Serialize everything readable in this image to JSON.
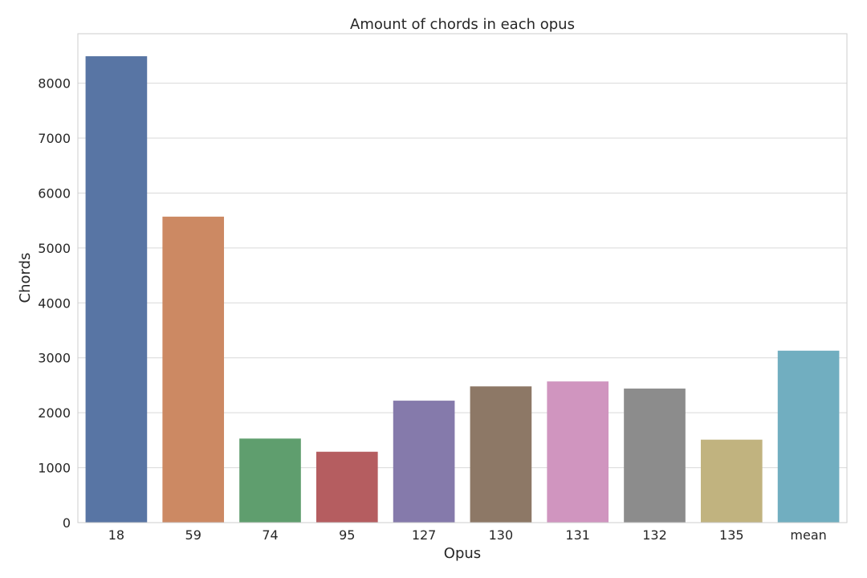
{
  "chart_data": {
    "type": "bar",
    "title": "Amount of chords in each opus",
    "xlabel": "Opus",
    "ylabel": "Chords",
    "categories": [
      "18",
      "59",
      "74",
      "95",
      "127",
      "130",
      "131",
      "132",
      "135",
      "mean"
    ],
    "values": [
      8490,
      5570,
      1530,
      1290,
      2220,
      2480,
      2570,
      2440,
      1510,
      3130
    ],
    "ylim": [
      0,
      8900
    ],
    "yticks": [
      0,
      1000,
      2000,
      3000,
      4000,
      5000,
      6000,
      7000,
      8000
    ],
    "grid": "horizontal",
    "colors": [
      "#5875a4",
      "#cc8963",
      "#5f9e6e",
      "#b55d60",
      "#857aab",
      "#8d7866",
      "#d095bf",
      "#8c8c8c",
      "#c1b37f",
      "#71aec0"
    ]
  }
}
